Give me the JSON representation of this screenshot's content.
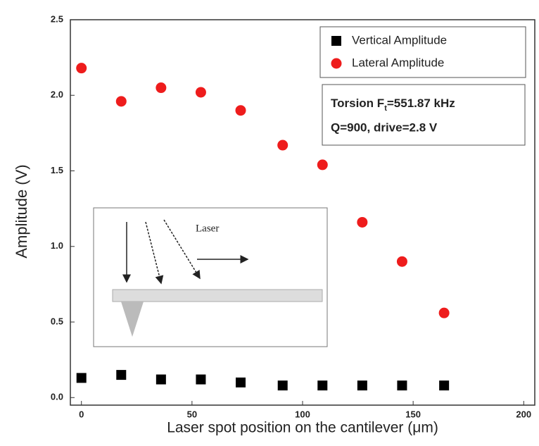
{
  "chart_data": {
    "type": "scatter",
    "xlabel": "Laser spot position on the cantilever (μm)",
    "ylabel": "Amplitude (V)",
    "x": [
      0,
      18,
      36,
      54,
      72,
      91,
      109,
      127,
      145,
      164
    ],
    "series": [
      {
        "name": "Vertical Amplitude",
        "color": "#000000",
        "marker": "square",
        "values": [
          0.13,
          0.15,
          0.12,
          0.12,
          0.1,
          0.08,
          0.08,
          0.08,
          0.08,
          0.08
        ]
      },
      {
        "name": "Lateral Amplitude",
        "color": "#ee1c1c",
        "marker": "circle",
        "values": [
          2.18,
          1.96,
          2.05,
          2.02,
          1.9,
          1.67,
          1.54,
          1.16,
          0.9,
          0.56
        ]
      }
    ],
    "xlim": [
      -5,
      205
    ],
    "ylim": [
      -0.05,
      2.5
    ],
    "xticks": [
      0,
      50,
      100,
      150,
      200
    ],
    "yticks": [
      {
        "value": 0,
        "label": "0.0"
      },
      0.5,
      {
        "value": 1,
        "label": "1.0"
      },
      1.5,
      {
        "value": 2,
        "label": "2.0"
      },
      2.5
    ],
    "annotation": {
      "text": "Torsion F",
      "subscript": "t",
      "suffix": "=551.87 kHz",
      "line2": "Q=900, drive=2.8 V"
    },
    "inset_label": "Laser"
  }
}
